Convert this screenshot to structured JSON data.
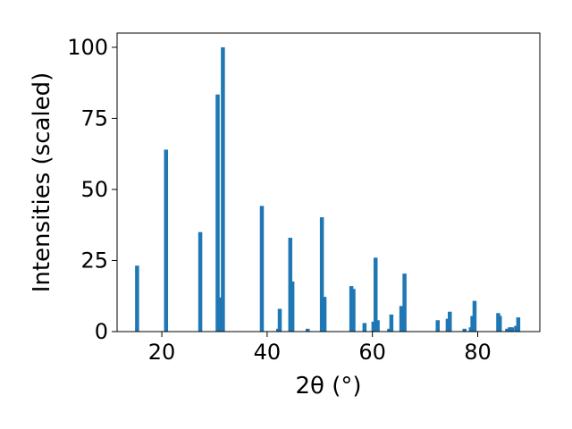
{
  "chart_data": {
    "type": "bar",
    "title": "",
    "xlabel": "2θ (°)",
    "ylabel": "Intensities (scaled)",
    "xlim": [
      11.5,
      91.8
    ],
    "ylim": [
      0,
      105
    ],
    "x_ticks": [
      20,
      40,
      60,
      80
    ],
    "y_ticks": [
      0,
      25,
      50,
      75,
      100
    ],
    "grid": false,
    "legend": "none",
    "bar_color": "#1f77b4",
    "points": [
      {
        "x": 15.3,
        "y": 23.2
      },
      {
        "x": 20.8,
        "y": 64.0
      },
      {
        "x": 27.3,
        "y": 35.0
      },
      {
        "x": 30.6,
        "y": 83.4
      },
      {
        "x": 31.0,
        "y": 12.0
      },
      {
        "x": 31.6,
        "y": 100.0
      },
      {
        "x": 39.0,
        "y": 44.2
      },
      {
        "x": 42.1,
        "y": 1.0
      },
      {
        "x": 42.4,
        "y": 8.0
      },
      {
        "x": 44.4,
        "y": 33.0
      },
      {
        "x": 44.8,
        "y": 17.6
      },
      {
        "x": 47.7,
        "y": 1.0
      },
      {
        "x": 50.4,
        "y": 40.2
      },
      {
        "x": 50.9,
        "y": 12.2
      },
      {
        "x": 56.0,
        "y": 16.0
      },
      {
        "x": 56.4,
        "y": 15.0
      },
      {
        "x": 58.5,
        "y": 3.0
      },
      {
        "x": 60.2,
        "y": 3.5
      },
      {
        "x": 60.6,
        "y": 26.0
      },
      {
        "x": 61.0,
        "y": 4.0
      },
      {
        "x": 63.2,
        "y": 1.0
      },
      {
        "x": 63.6,
        "y": 6.0
      },
      {
        "x": 65.5,
        "y": 9.0
      },
      {
        "x": 66.1,
        "y": 20.4
      },
      {
        "x": 72.4,
        "y": 4.0
      },
      {
        "x": 74.3,
        "y": 4.5
      },
      {
        "x": 74.7,
        "y": 7.0
      },
      {
        "x": 77.5,
        "y": 1.0
      },
      {
        "x": 78.7,
        "y": 1.5
      },
      {
        "x": 79.0,
        "y": 5.5
      },
      {
        "x": 79.4,
        "y": 10.8
      },
      {
        "x": 83.9,
        "y": 6.5
      },
      {
        "x": 84.2,
        "y": 5.5
      },
      {
        "x": 85.6,
        "y": 1.0
      },
      {
        "x": 86.1,
        "y": 1.5
      },
      {
        "x": 86.5,
        "y": 1.5
      },
      {
        "x": 87.3,
        "y": 2.0
      },
      {
        "x": 87.7,
        "y": 5.0
      }
    ]
  }
}
